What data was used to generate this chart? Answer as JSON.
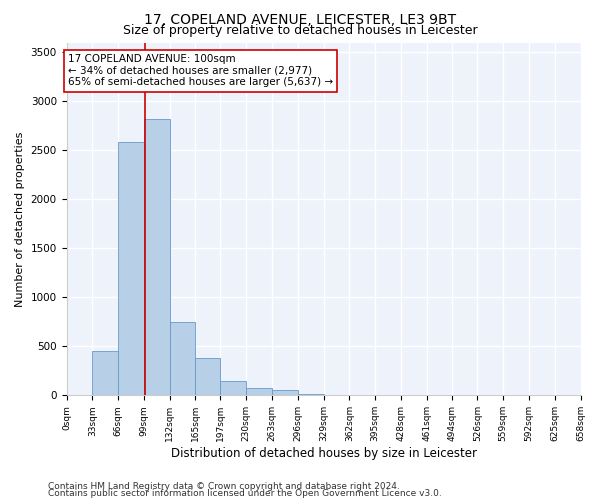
{
  "title1": "17, COPELAND AVENUE, LEICESTER, LE3 9BT",
  "title2": "Size of property relative to detached houses in Leicester",
  "xlabel": "Distribution of detached houses by size in Leicester",
  "ylabel": "Number of detached properties",
  "bar_bins": [
    0,
    33,
    66,
    99,
    132,
    165,
    197,
    230,
    263,
    296,
    329,
    362,
    395,
    428,
    461,
    494,
    526,
    559,
    592,
    625,
    658
  ],
  "bar_heights": [
    5,
    450,
    2580,
    2820,
    750,
    380,
    145,
    80,
    55,
    10,
    5,
    3,
    2,
    2,
    2,
    1,
    1,
    1,
    1,
    1
  ],
  "bar_color": "#b8cfe8",
  "bar_edge_color": "#6699cc",
  "property_line_x": 100,
  "property_line_color": "#cc0000",
  "annotation_text": "17 COPELAND AVENUE: 100sqm\n← 34% of detached houses are smaller (2,977)\n65% of semi-detached houses are larger (5,637) →",
  "annotation_box_color": "white",
  "annotation_box_edge": "#cc0000",
  "annotation_fontsize": 7.5,
  "ylim": [
    0,
    3600
  ],
  "yticks": [
    0,
    500,
    1000,
    1500,
    2000,
    2500,
    3000,
    3500
  ],
  "tick_labels": [
    "0sqm",
    "33sqm",
    "66sqm",
    "99sqm",
    "132sqm",
    "165sqm",
    "197sqm",
    "230sqm",
    "263sqm",
    "296sqm",
    "329sqm",
    "362sqm",
    "395sqm",
    "428sqm",
    "461sqm",
    "494sqm",
    "526sqm",
    "559sqm",
    "592sqm",
    "625sqm",
    "658sqm"
  ],
  "bg_color": "#eef2fb",
  "grid_color": "#ffffff",
  "footer1": "Contains HM Land Registry data © Crown copyright and database right 2024.",
  "footer2": "Contains public sector information licensed under the Open Government Licence v3.0.",
  "title1_fontsize": 10,
  "title2_fontsize": 9,
  "xlabel_fontsize": 8.5,
  "ylabel_fontsize": 8,
  "footer_fontsize": 6.5
}
